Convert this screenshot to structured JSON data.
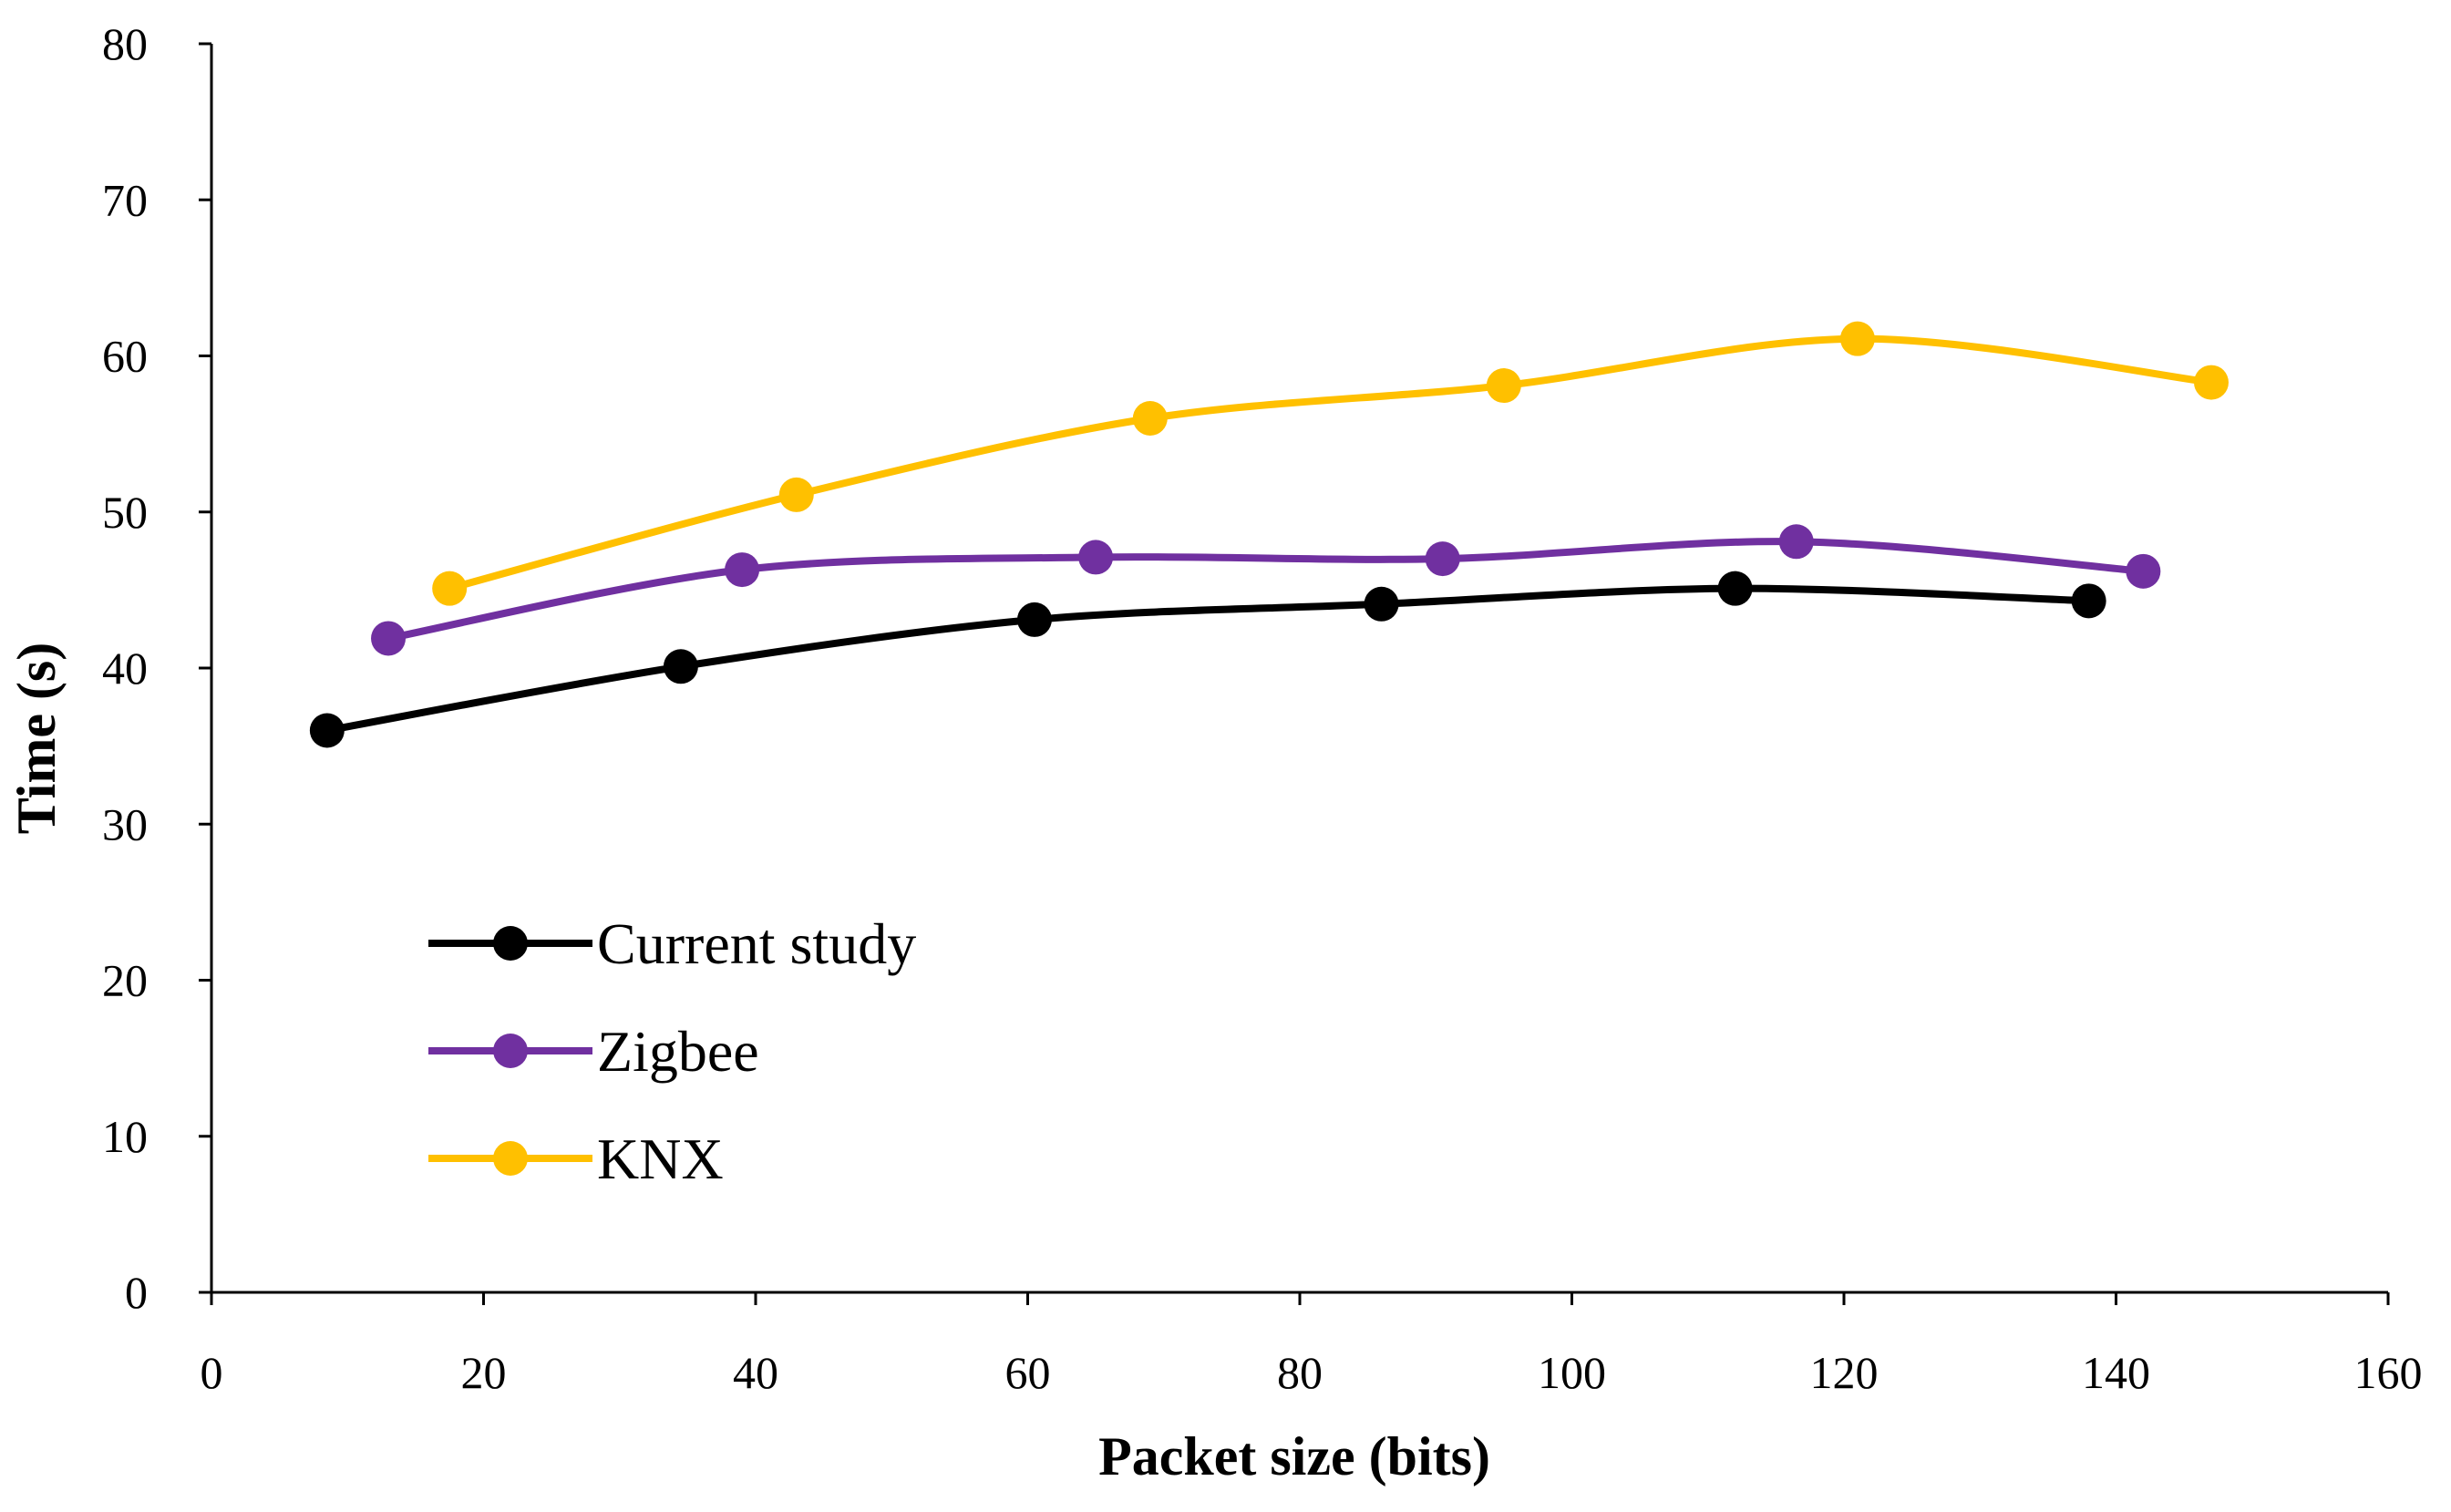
{
  "chart_data": {
    "type": "line",
    "title": "",
    "xlabel": "Packet size (bits)",
    "ylabel": "Time (s)",
    "xlim": [
      0,
      160
    ],
    "ylim": [
      0,
      80
    ],
    "xticks": [
      0,
      20,
      40,
      60,
      80,
      100,
      120,
      140,
      160
    ],
    "yticks": [
      0,
      10,
      20,
      30,
      40,
      50,
      60,
      70,
      80
    ],
    "grid": false,
    "legend_position": "lower-left",
    "series": [
      {
        "name": "Current study",
        "color": "#000000",
        "x": [
          8.5,
          34.5,
          60.5,
          86,
          112,
          138
        ],
        "y": [
          36,
          40.1,
          43.1,
          44.1,
          45.1,
          44.3
        ]
      },
      {
        "name": "Zigbee",
        "color": "#7030A0",
        "x": [
          13,
          39,
          65,
          90.5,
          116.5,
          142
        ],
        "y": [
          41.9,
          46.3,
          47.1,
          47.0,
          48.1,
          46.2
        ]
      },
      {
        "name": "KNX",
        "color": "#FFC000",
        "x": [
          17.5,
          43,
          69,
          95,
          121,
          147
        ],
        "y": [
          45.1,
          51.1,
          56,
          58.1,
          61.1,
          58.3
        ]
      }
    ]
  }
}
